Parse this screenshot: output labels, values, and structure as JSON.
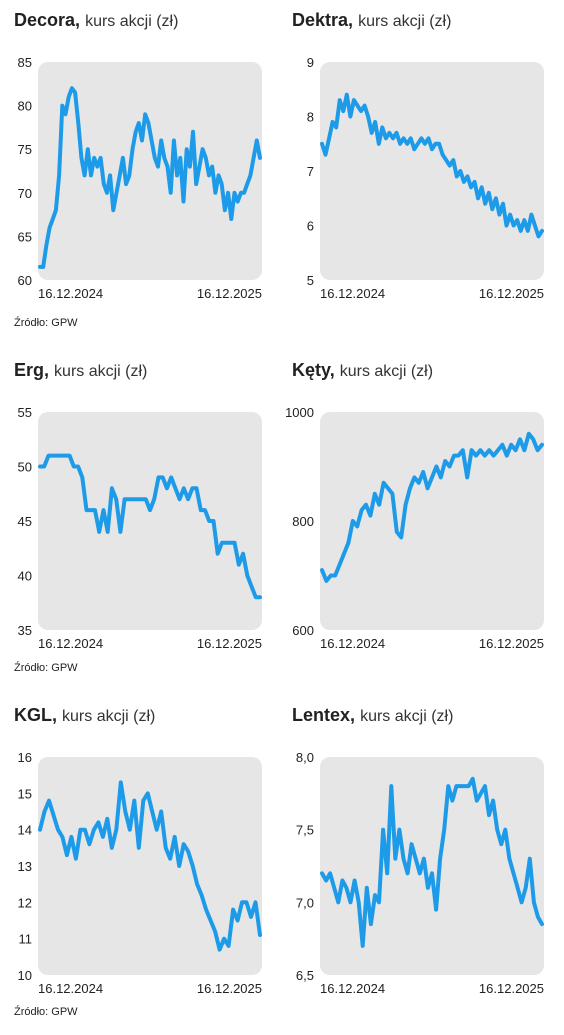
{
  "source_label": "Źródło: GPW",
  "colors": {
    "line": "#1e9be8",
    "plot_bg": "#e6e6e6",
    "text": "#222222"
  },
  "chart_data": [
    {
      "type": "line",
      "company": "Decora",
      "subtitle": "kurs akcji (zł)",
      "ylim": [
        60,
        85
      ],
      "yticks": [
        "60",
        "65",
        "70",
        "75",
        "80",
        "85"
      ],
      "xticks": [
        "16.12.2024",
        "16.12.2025"
      ],
      "series": [
        {
          "values": [
            61.5,
            61.5,
            64,
            66,
            67,
            68,
            72,
            80,
            79,
            81,
            82,
            81.5,
            78,
            74,
            72,
            75,
            72,
            74,
            73,
            74,
            71,
            70,
            72,
            68,
            70,
            72,
            74,
            71,
            72,
            75,
            77,
            78,
            76,
            79,
            78,
            76,
            74,
            73,
            76,
            74,
            73,
            70,
            76,
            72,
            74,
            69,
            75,
            73,
            77,
            71,
            73,
            75,
            74,
            72,
            73,
            70,
            72,
            71,
            68,
            70,
            67,
            70,
            69,
            70,
            70,
            71,
            72,
            74,
            76,
            74
          ]
        }
      ]
    },
    {
      "type": "line",
      "company": "Dektra",
      "subtitle": "kurs akcji (zł)",
      "ylim": [
        5,
        9
      ],
      "yticks": [
        "5",
        "6",
        "7",
        "8",
        "9"
      ],
      "xticks": [
        "16.12.2024",
        "16.12.2025"
      ],
      "series": [
        {
          "values": [
            7.5,
            7.3,
            7.6,
            7.9,
            7.8,
            8.3,
            8.1,
            8.4,
            8.0,
            8.3,
            8.2,
            8.1,
            8.2,
            8.0,
            7.7,
            7.9,
            7.5,
            7.8,
            7.6,
            7.7,
            7.6,
            7.7,
            7.5,
            7.6,
            7.5,
            7.6,
            7.4,
            7.5,
            7.6,
            7.5,
            7.6,
            7.4,
            7.5,
            7.5,
            7.3,
            7.2,
            7.1,
            7.2,
            6.9,
            7.0,
            6.8,
            6.9,
            6.7,
            6.8,
            6.5,
            6.7,
            6.4,
            6.6,
            6.3,
            6.5,
            6.2,
            6.4,
            6.0,
            6.2,
            6.0,
            6.1,
            5.9,
            6.1,
            5.9,
            6.2,
            6.0,
            5.8,
            5.9
          ]
        }
      ]
    },
    {
      "type": "line",
      "company": "Erg",
      "subtitle": "kurs akcji (zł)",
      "ylim": [
        35,
        55
      ],
      "yticks": [
        "35",
        "40",
        "45",
        "50",
        "55"
      ],
      "xticks": [
        "16.12.2024",
        "16.12.2025"
      ],
      "series": [
        {
          "values": [
            50,
            50,
            51,
            51,
            51,
            51,
            51,
            51,
            50,
            50,
            49,
            46,
            46,
            46,
            44,
            46,
            44,
            48,
            47,
            44,
            47,
            47,
            47,
            47,
            47,
            47,
            46,
            47,
            49,
            49,
            48,
            49,
            48,
            47,
            48,
            47,
            48,
            48,
            46,
            46,
            45,
            45,
            42,
            43,
            43,
            43,
            43,
            41,
            42,
            40,
            39,
            38,
            38
          ]
        }
      ]
    },
    {
      "type": "line",
      "company": "Kęty",
      "subtitle": "kurs akcji (zł)",
      "ylim": [
        600,
        1000
      ],
      "yticks": [
        "600",
        "800",
        "1000"
      ],
      "xticks": [
        "16.12.2024",
        "16.12.2025"
      ],
      "series": [
        {
          "values": [
            710,
            690,
            700,
            700,
            720,
            740,
            760,
            800,
            790,
            820,
            830,
            810,
            850,
            830,
            870,
            860,
            850,
            780,
            770,
            830,
            860,
            880,
            870,
            890,
            860,
            880,
            900,
            880,
            910,
            900,
            920,
            920,
            930,
            880,
            930,
            920,
            930,
            920,
            930,
            920,
            930,
            940,
            920,
            940,
            930,
            950,
            930,
            960,
            950,
            930,
            940
          ]
        }
      ]
    },
    {
      "type": "line",
      "company": "KGL",
      "subtitle": "kurs akcji (zł)",
      "ylim": [
        10,
        16
      ],
      "yticks": [
        "10",
        "11",
        "12",
        "13",
        "14",
        "15",
        "16"
      ],
      "xticks": [
        "16.12.2024",
        "16.12.2025"
      ],
      "series": [
        {
          "values": [
            14.0,
            14.5,
            14.8,
            14.4,
            14.0,
            13.8,
            13.3,
            13.8,
            13.2,
            14.0,
            14.0,
            13.6,
            14.0,
            14.2,
            13.8,
            14.3,
            13.5,
            14.0,
            15.3,
            14.5,
            14.0,
            14.8,
            13.5,
            14.8,
            15.0,
            14.5,
            14.0,
            14.5,
            13.5,
            13.2,
            13.8,
            13.0,
            13.6,
            13.4,
            13.0,
            12.5,
            12.2,
            11.8,
            11.5,
            11.2,
            10.7,
            11.0,
            10.8,
            11.8,
            11.5,
            12.0,
            12.0,
            11.6,
            12.0,
            11.1
          ]
        }
      ]
    },
    {
      "type": "line",
      "company": "Lentex",
      "subtitle": "kurs akcji (zł)",
      "ylim": [
        6.5,
        8.0
      ],
      "yticks": [
        "6,5",
        "7,0",
        "7,5",
        "8,0"
      ],
      "xticks": [
        "16.12.2024",
        "16.12.2025"
      ],
      "series": [
        {
          "values": [
            7.2,
            7.15,
            7.2,
            7.1,
            7.0,
            7.15,
            7.1,
            7.0,
            7.15,
            7.0,
            6.7,
            7.1,
            6.85,
            7.05,
            7.0,
            7.5,
            7.2,
            7.8,
            7.3,
            7.5,
            7.3,
            7.2,
            7.4,
            7.3,
            7.2,
            7.3,
            7.1,
            7.2,
            6.95,
            7.3,
            7.5,
            7.8,
            7.7,
            7.8,
            7.8,
            7.8,
            7.8,
            7.85,
            7.7,
            7.75,
            7.8,
            7.6,
            7.7,
            7.5,
            7.4,
            7.5,
            7.3,
            7.2,
            7.1,
            7.0,
            7.1,
            7.3,
            7.0,
            6.9,
            6.85
          ]
        }
      ]
    }
  ]
}
